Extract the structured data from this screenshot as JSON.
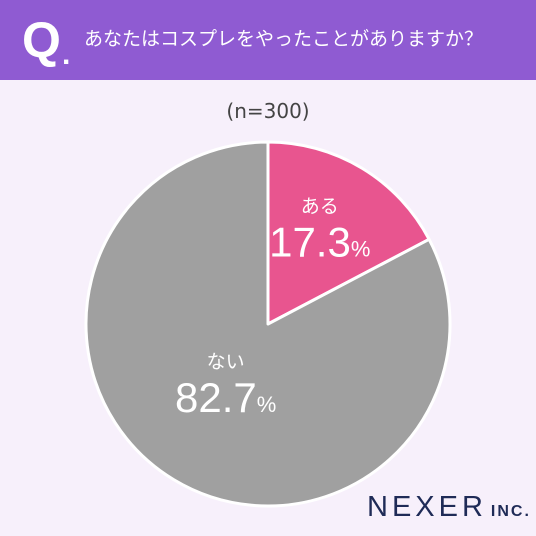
{
  "header": {
    "q_mark": "Q",
    "q_dot": ".",
    "question": "あなたはコスプレをやったことがありますか？",
    "background": "#8f5bd2"
  },
  "sample_label": "(n=300)",
  "brand": {
    "name": "NEXER",
    "suffix": "INC."
  },
  "chart_data": {
    "type": "pie",
    "title": "あなたはコスプレをやったことがありますか？",
    "slices": [
      {
        "label": "ある",
        "value": 17.3,
        "value_text": "17.3",
        "unit": "%",
        "color": "#e8558f"
      },
      {
        "label": "ない",
        "value": 82.7,
        "value_text": "82.7",
        "unit": "%",
        "color": "#a0a0a0"
      }
    ],
    "start": "12 o'clock",
    "direction": "clockwise",
    "legend": "none"
  }
}
